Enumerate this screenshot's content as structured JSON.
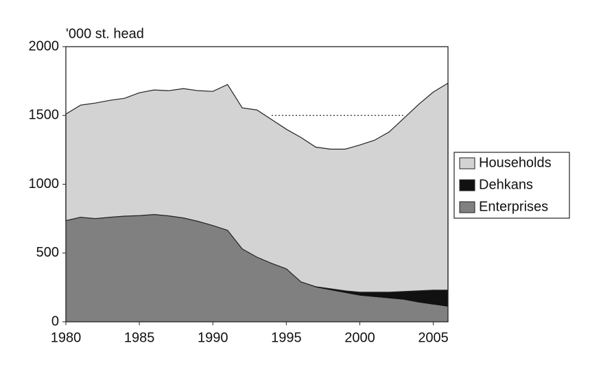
{
  "chart_data": {
    "type": "stacked_area",
    "y_label": "'000 st. head",
    "x": [
      1980,
      1981,
      1982,
      1983,
      1984,
      1985,
      1986,
      1987,
      1988,
      1989,
      1990,
      1991,
      1992,
      1993,
      1994,
      1995,
      1996,
      1997,
      1998,
      1999,
      2000,
      2001,
      2002,
      2003,
      2004,
      2005,
      2006
    ],
    "series": [
      {
        "name": "Enterprises",
        "color": "#808080",
        "values": [
          735,
          760,
          750,
          760,
          768,
          772,
          780,
          770,
          755,
          730,
          700,
          665,
          530,
          470,
          425,
          385,
          290,
          250,
          230,
          210,
          190,
          180,
          170,
          160,
          140,
          125,
          110
        ]
      },
      {
        "name": "Dehkans",
        "color": "#111111",
        "values": [
          0,
          0,
          0,
          0,
          0,
          0,
          0,
          0,
          0,
          0,
          0,
          0,
          0,
          0,
          0,
          0,
          0,
          5,
          10,
          15,
          25,
          35,
          45,
          60,
          85,
          105,
          120
        ]
      },
      {
        "name": "Households",
        "color": "#d3d3d3",
        "values": [
          775,
          815,
          840,
          850,
          857,
          893,
          905,
          910,
          940,
          950,
          975,
          1060,
          1025,
          1070,
          1045,
          1015,
          1050,
          1015,
          1015,
          1030,
          1070,
          1105,
          1165,
          1260,
          1355,
          1440,
          1505
        ]
      }
    ],
    "xlim": [
      1980,
      2006
    ],
    "xticks": [
      1980,
      1985,
      1990,
      1995,
      2000,
      2005
    ],
    "ylim": [
      0,
      2000
    ],
    "yticks": [
      0,
      500,
      1000,
      1500,
      2000
    ],
    "reference_line": {
      "value": 1500,
      "x": [
        1994,
        2003
      ]
    },
    "legend": "right"
  }
}
